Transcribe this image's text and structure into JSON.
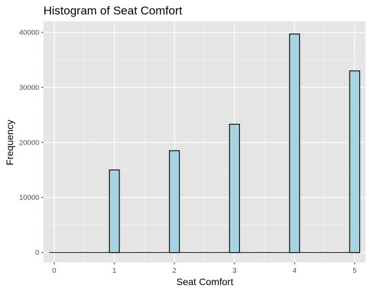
{
  "chart_data": {
    "type": "bar",
    "title": "Histogram of Seat Comfort",
    "xlabel": "Seat Comfort",
    "ylabel": "Frequency",
    "x_ticks": [
      "0",
      "1",
      "2",
      "3",
      "4",
      "5"
    ],
    "y_ticks": [
      "0",
      "10000",
      "20000",
      "30000",
      "40000"
    ],
    "xlim": [
      -0.18,
      5.18
    ],
    "ylim": [
      -1800,
      42000
    ],
    "bin_width": 0.167,
    "bins": [
      {
        "x": 0,
        "value": 0
      },
      {
        "x": 1,
        "value": 15000
      },
      {
        "x": 2,
        "value": 18500
      },
      {
        "x": 3,
        "value": 23300
      },
      {
        "x": 4,
        "value": 39700
      },
      {
        "x": 5,
        "value": 33000
      }
    ],
    "grid": true,
    "colors": {
      "panel": "#e5e5e5",
      "grid_major": "#ffffff",
      "bar_fill": "#a8d3e2",
      "bar_stroke": "#000000"
    }
  }
}
